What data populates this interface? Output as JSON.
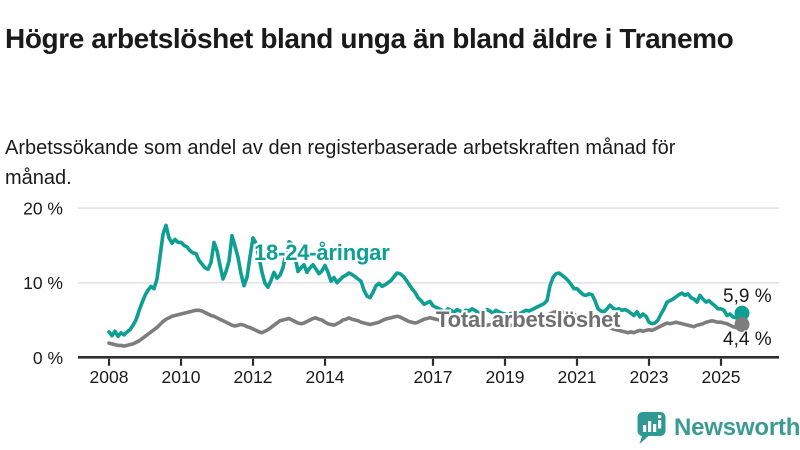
{
  "header": {
    "title": "Högre arbetslöshet bland unga än bland äldre i Tranemo",
    "subtitle": "Arbetssökande som andel av den registerbaserade arbetskraften månad för månad."
  },
  "footer": {
    "brand": "Newsworthy",
    "brand_color": "#3a9b95",
    "logo_icon": "bar-chart-speech-bubble-icon"
  },
  "colors": {
    "youth_line": "#0d9e94",
    "total_line": "#7d7d7d",
    "total_label": "#6f6f6f",
    "axis": "#2e2e2e",
    "grid": "#e2e2e2",
    "text": "#1a1a1a"
  },
  "chart_data": {
    "type": "line",
    "title": "Högre arbetslöshet bland unga än bland äldre i Tranemo",
    "subtitle": "Arbetssökande som andel av den registerbaserade arbetskraften månad för månad.",
    "xlabel": "",
    "ylabel": "",
    "grid": "horizontal-only",
    "legend_position": "inline-labels",
    "ylim": [
      0,
      20
    ],
    "y_ticks": [
      {
        "value": 0,
        "label": "0 %"
      },
      {
        "value": 10,
        "label": "10 %"
      },
      {
        "value": 20,
        "label": "20 %"
      }
    ],
    "x_ticks": [
      {
        "year": 2008,
        "label": "2008"
      },
      {
        "year": 2010,
        "label": "2010"
      },
      {
        "year": 2012,
        "label": "2012"
      },
      {
        "year": 2014,
        "label": "2014"
      },
      {
        "year": 2017,
        "label": "2017"
      },
      {
        "year": 2019,
        "label": "2019"
      },
      {
        "year": 2021,
        "label": "2021"
      },
      {
        "year": 2023,
        "label": "2023"
      },
      {
        "year": 2025,
        "label": "2025"
      }
    ],
    "frequency": "monthly",
    "start": "2008-01",
    "end": "2025-08",
    "series": [
      {
        "name": "18-24-åringar",
        "color": "#0d9e94",
        "end_label": "5,9 %",
        "last_value": 5.9,
        "values": [
          3.4,
          2.9,
          3.5,
          2.8,
          3.3,
          3.0,
          3.4,
          3.7,
          4.3,
          5.0,
          6.2,
          7.3,
          8.3,
          9.0,
          9.5,
          9.2,
          10.5,
          13.5,
          16.5,
          17.7,
          16.0,
          15.3,
          15.8,
          15.4,
          15.4,
          15.0,
          14.8,
          14.3,
          14.0,
          13.9,
          13.0,
          12.5,
          12.0,
          11.8,
          12.7,
          15.4,
          14.3,
          12.3,
          10.5,
          11.5,
          12.9,
          16.3,
          14.9,
          13.4,
          11.2,
          9.6,
          10.7,
          13.5,
          16.0,
          15.3,
          13.4,
          11.4,
          9.9,
          9.4,
          10.3,
          11.4,
          10.6,
          11.0,
          12.0,
          14.0,
          15.5,
          15.2,
          13.5,
          11.5,
          12.0,
          12.4,
          11.4,
          12.0,
          12.4,
          11.8,
          11.2,
          11.6,
          12.3,
          11.4,
          10.2,
          10.7,
          10.0,
          10.4,
          10.8,
          11.0,
          11.3,
          11.1,
          10.8,
          10.5,
          10.2,
          9.0,
          8.2,
          8.0,
          8.7,
          9.6,
          9.9,
          9.5,
          9.7,
          10.0,
          10.3,
          10.8,
          11.3,
          11.2,
          10.9,
          10.4,
          9.8,
          9.2,
          8.7,
          8.0,
          7.6,
          7.1,
          7.3,
          7.5,
          6.9,
          6.7,
          6.5,
          6.3,
          6.1,
          6.5,
          6.3,
          6.0,
          6.4,
          6.2,
          6.0,
          6.3,
          6.2,
          6.5,
          6.3,
          6.0,
          5.8,
          6.1,
          6.4,
          6.2,
          5.9,
          6.3,
          6.1,
          5.9,
          5.8,
          5.6,
          5.9,
          5.7,
          6.0,
          5.8,
          6.1,
          6.3,
          6.2,
          6.4,
          6.6,
          6.8,
          7.0,
          7.2,
          7.6,
          9.6,
          10.7,
          11.2,
          11.3,
          11.0,
          10.7,
          10.3,
          9.8,
          9.2,
          9.2,
          8.8,
          8.4,
          8.3,
          8.5,
          8.4,
          7.6,
          6.5,
          6.2,
          6.1,
          6.5,
          7.0,
          6.6,
          6.4,
          6.5,
          6.3,
          6.4,
          6.2,
          5.9,
          5.6,
          6.1,
          5.4,
          5.8,
          5.5,
          4.7,
          4.5,
          4.6,
          5.0,
          5.8,
          6.5,
          7.4,
          7.6,
          7.8,
          8.1,
          8.4,
          8.6,
          8.3,
          8.5,
          8.0,
          7.8,
          7.4,
          8.3,
          7.8,
          7.4,
          7.6,
          7.2,
          6.9,
          6.5,
          6.5,
          6.3,
          5.6,
          5.8,
          5.4,
          5.3,
          5.6,
          5.9
        ]
      },
      {
        "name": "Total arbetslöshet",
        "color": "#7d7d7d",
        "end_label": "4,4 %",
        "last_value": 4.4,
        "values": [
          1.9,
          1.8,
          1.7,
          1.6,
          1.6,
          1.5,
          1.6,
          1.7,
          1.8,
          2.0,
          2.2,
          2.5,
          2.8,
          3.1,
          3.4,
          3.7,
          4.0,
          4.4,
          4.8,
          5.1,
          5.3,
          5.5,
          5.6,
          5.7,
          5.8,
          5.9,
          6.0,
          6.1,
          6.2,
          6.3,
          6.3,
          6.2,
          6.0,
          5.8,
          5.6,
          5.5,
          5.3,
          5.1,
          4.9,
          4.7,
          4.5,
          4.3,
          4.2,
          4.3,
          4.4,
          4.3,
          4.1,
          4.0,
          3.8,
          3.6,
          3.4,
          3.3,
          3.5,
          3.7,
          4.0,
          4.3,
          4.6,
          4.9,
          5.0,
          5.1,
          5.2,
          5.0,
          4.8,
          4.6,
          4.5,
          4.6,
          4.8,
          5.0,
          5.2,
          5.3,
          5.1,
          5.0,
          4.7,
          4.5,
          4.4,
          4.3,
          4.5,
          4.7,
          5.0,
          5.1,
          5.3,
          5.1,
          5.0,
          4.9,
          4.7,
          4.6,
          4.5,
          4.4,
          4.5,
          4.6,
          4.7,
          4.9,
          5.1,
          5.2,
          5.3,
          5.4,
          5.5,
          5.4,
          5.2,
          5.0,
          4.8,
          4.7,
          4.6,
          4.7,
          4.9,
          5.1,
          5.2,
          5.3,
          5.2,
          5.1,
          5.0,
          4.9,
          4.8,
          4.7,
          4.6,
          4.6,
          4.5,
          4.6,
          4.7,
          4.8,
          4.7,
          4.6,
          4.5,
          4.4,
          4.3,
          4.2,
          4.3,
          4.4,
          4.3,
          4.2,
          4.3,
          4.4,
          4.3,
          4.2,
          4.3,
          4.4,
          4.5,
          4.4,
          4.5,
          4.6,
          4.7,
          4.8,
          4.9,
          5.0,
          5.1,
          5.2,
          5.4,
          5.8,
          6.0,
          6.1,
          6.2,
          6.1,
          6.0,
          5.9,
          5.8,
          5.7,
          5.6,
          5.5,
          5.4,
          5.3,
          5.2,
          5.0,
          4.8,
          4.6,
          4.4,
          4.2,
          4.1,
          4.0,
          3.8,
          3.7,
          3.6,
          3.5,
          3.4,
          3.3,
          3.4,
          3.3,
          3.5,
          3.6,
          3.5,
          3.6,
          3.7,
          3.6,
          3.8,
          4.0,
          4.2,
          4.4,
          4.6,
          4.5,
          4.6,
          4.7,
          4.6,
          4.5,
          4.4,
          4.3,
          4.2,
          4.1,
          4.3,
          4.4,
          4.5,
          4.7,
          4.8,
          4.9,
          4.8,
          4.7,
          4.7,
          4.6,
          4.5,
          4.3,
          4.1,
          4.0,
          4.2,
          4.4
        ]
      }
    ]
  }
}
